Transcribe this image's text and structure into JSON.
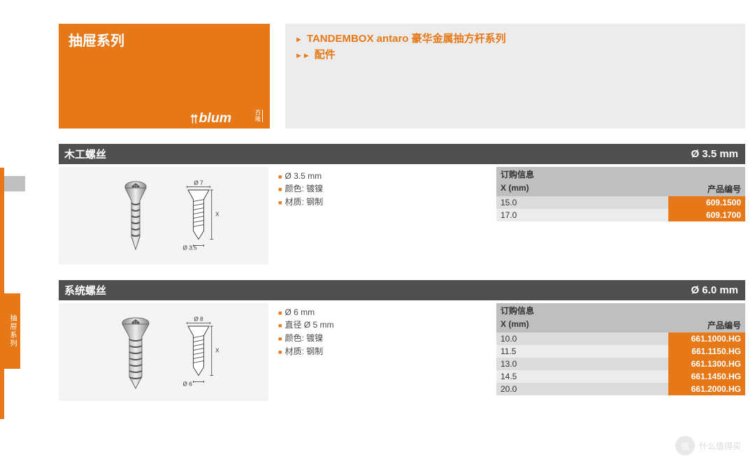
{
  "sidebar_label": "抽屉系列",
  "header": {
    "left_title": "抽屉系列",
    "logo_text": "blum",
    "logo_cn_top": "百",
    "logo_cn_bot": "隆",
    "right_line1": "TANDEMBOX antaro 豪华金属抽方杆系列",
    "right_line2": "配件"
  },
  "sections": [
    {
      "title": "木工螺丝",
      "diameter": "Ø 3.5 mm",
      "diag_top": "Ø 7",
      "diag_bot": "Ø 3.5",
      "specs": [
        "Ø 3.5 mm",
        "颜色: 镀镍",
        "材质: 钢制"
      ],
      "order_title": "订购信息",
      "col_x": "X (mm)",
      "col_pn": "产品编号",
      "rows": [
        {
          "x": "15.0",
          "pn": "609.1500"
        },
        {
          "x": "17.0",
          "pn": "609.1700"
        }
      ]
    },
    {
      "title": "系统螺丝",
      "diameter": "Ø 6.0 mm",
      "diag_top": "Ø 8",
      "diag_bot": "Ø 6",
      "specs": [
        "Ø 6 mm",
        "直径 Ø 5 mm",
        "颜色: 镀镍",
        "材质: 钢制"
      ],
      "order_title": "订购信息",
      "col_x": "X (mm)",
      "col_pn": "产品编号",
      "rows": [
        {
          "x": "10.0",
          "pn": "661.1000.HG"
        },
        {
          "x": "11.5",
          "pn": "661.1150.HG"
        },
        {
          "x": "13.0",
          "pn": "661.1300.HG"
        },
        {
          "x": "14.5",
          "pn": "661.1450.HG"
        },
        {
          "x": "20.0",
          "pn": "661.2000.HG"
        }
      ]
    }
  ],
  "watermark": "什么值得买",
  "watermark_icon": "值",
  "colors": {
    "brand": "#e67817",
    "bar": "#4f4f4f",
    "gray_bg": "#ececec"
  }
}
